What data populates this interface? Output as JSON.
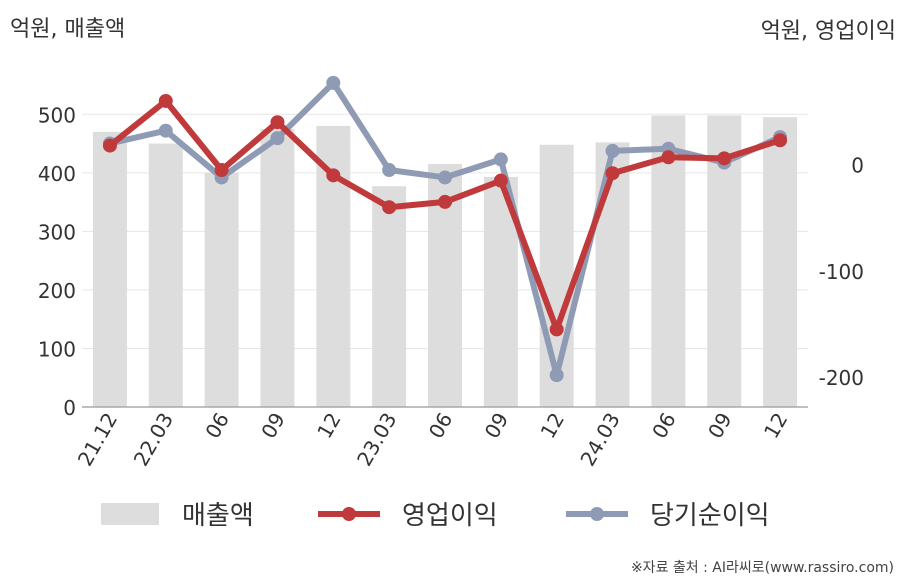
{
  "chart_data": {
    "type": "bar+line",
    "categories": [
      "21.12",
      "22.03",
      "06",
      "09",
      "12",
      "23.03",
      "06",
      "09",
      "12",
      "24.03",
      "06",
      "09",
      "12"
    ],
    "left_axis": {
      "unit_label": "억원, 매출액",
      "range": [
        0,
        550
      ],
      "ticks": [
        0,
        100,
        200,
        300,
        400,
        500
      ]
    },
    "right_axis": {
      "unit_label": "억원, 영업이익",
      "range": [
        -228,
        75
      ],
      "ticks": [
        0,
        -100,
        -200
      ]
    },
    "series": [
      {
        "name": "매출액",
        "type": "bar",
        "axis": "left",
        "color": "#dddddd",
        "values": [
          470,
          450,
          400,
          475,
          480,
          377,
          415,
          393,
          448,
          452,
          498,
          498,
          495
        ]
      },
      {
        "name": "영업이익",
        "type": "line",
        "axis": "right",
        "color": "#c0393b",
        "values": [
          18,
          60,
          -5,
          40,
          -10,
          -40,
          -35,
          -15,
          -155,
          -8,
          7,
          6,
          23
        ]
      },
      {
        "name": "당기순이익",
        "type": "line",
        "axis": "right",
        "color": "#8f9bb5",
        "values": [
          20,
          32,
          -12,
          25,
          77,
          -5,
          -12,
          5,
          -198,
          13,
          15,
          2,
          26
        ]
      }
    ],
    "legend_position": "bottom",
    "grid": true,
    "source": "※자료 출처 : AI라씨로(www.rassiro.com)"
  }
}
